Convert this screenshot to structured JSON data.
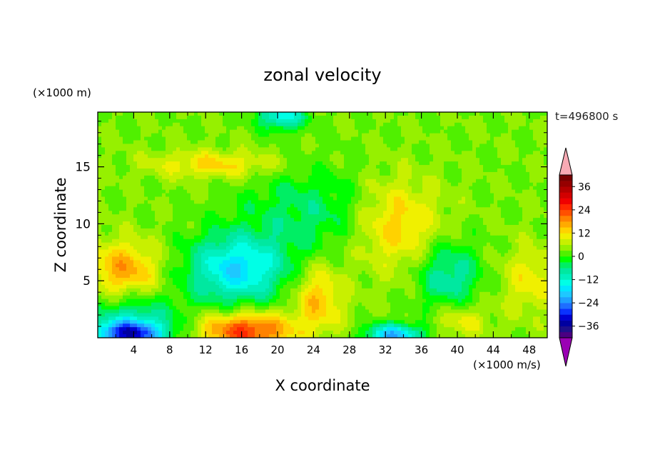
{
  "chart_data": {
    "type": "heatmap",
    "title": "zonal velocity",
    "xlabel": "X coordinate",
    "ylabel": "Z coordinate",
    "x_unit": "(×1000 m/s)",
    "y_unit": "(×1000 m)",
    "time_label": "t=496800 s",
    "xlim": [
      0,
      50
    ],
    "ylim": [
      0,
      19.8
    ],
    "x_ticks": [
      4,
      8,
      12,
      16,
      20,
      24,
      28,
      32,
      36,
      40,
      44,
      48
    ],
    "y_ticks": [
      5,
      10,
      15
    ],
    "colorbar": {
      "levels": [
        -42,
        -39,
        -36,
        -33,
        -30,
        -27,
        -24,
        -21,
        -18,
        -15,
        -12,
        -9,
        -6,
        -3,
        0,
        3,
        6,
        9,
        12,
        15,
        18,
        21,
        24,
        27,
        30,
        33,
        36,
        39,
        42
      ],
      "tick_values": [
        -36,
        -24,
        -12,
        0,
        12,
        24,
        36
      ],
      "tick_labels": [
        "−36",
        "−24",
        "−12",
        "0",
        "12",
        "24",
        "36"
      ],
      "colors": [
        "#4b0082",
        "#1e0f8c",
        "#0000a0",
        "#0000d2",
        "#0a32ff",
        "#1e6eff",
        "#1ea0ff",
        "#1ec8ff",
        "#00e6ff",
        "#00ffe6",
        "#00f0be",
        "#00e8a0",
        "#00ee64",
        "#00ff00",
        "#50f000",
        "#96f000",
        "#c8f000",
        "#f0f000",
        "#ffd200",
        "#ffaa00",
        "#ff8200",
        "#ff5000",
        "#ff2800",
        "#f00000",
        "#d20000",
        "#b40000",
        "#960000",
        "#780000"
      ],
      "under_color": "#9a00b4",
      "over_color": "#f7aab4"
    },
    "field_features": [
      {
        "x": 3.5,
        "z": 0.3,
        "u": -32,
        "sx": 4.0,
        "sz": 1.2
      },
      {
        "x": 16.5,
        "z": 0.6,
        "u": 22,
        "sx": 5.0,
        "sz": 1.6
      },
      {
        "x": 33,
        "z": 0.2,
        "u": -24,
        "sx": 3.0,
        "sz": 1.0
      },
      {
        "x": 15.5,
        "z": 6.0,
        "u": -20,
        "sx": 5.5,
        "sz": 3.0
      },
      {
        "x": 3,
        "z": 6.0,
        "u": 14,
        "sx": 4.0,
        "sz": 2.5
      },
      {
        "x": 24.5,
        "z": 3.5,
        "u": 12,
        "sx": 2.8,
        "sz": 3.0
      },
      {
        "x": 33,
        "z": 10.0,
        "u": 12,
        "sx": 5.0,
        "sz": 4.0
      },
      {
        "x": 20.5,
        "z": 19.5,
        "u": -18,
        "sx": 2.5,
        "sz": 1.2
      },
      {
        "x": 13,
        "z": 15.2,
        "u": 10,
        "sx": 7.0,
        "sz": 1.2
      },
      {
        "x": 39,
        "z": 5.5,
        "u": -12,
        "sx": 3.5,
        "sz": 3.0
      },
      {
        "x": 40.5,
        "z": 1.5,
        "u": 8,
        "sx": 3.0,
        "sz": 1.5
      },
      {
        "x": 48,
        "z": 5.0,
        "u": 8,
        "sx": 3.0,
        "sz": 3.0
      },
      {
        "x": 4,
        "z": 2.0,
        "u": -10,
        "sx": 5.0,
        "sz": 2.0
      },
      {
        "x": 24,
        "z": 11.0,
        "u": -8,
        "sx": 8.0,
        "sz": 4.0
      }
    ]
  }
}
